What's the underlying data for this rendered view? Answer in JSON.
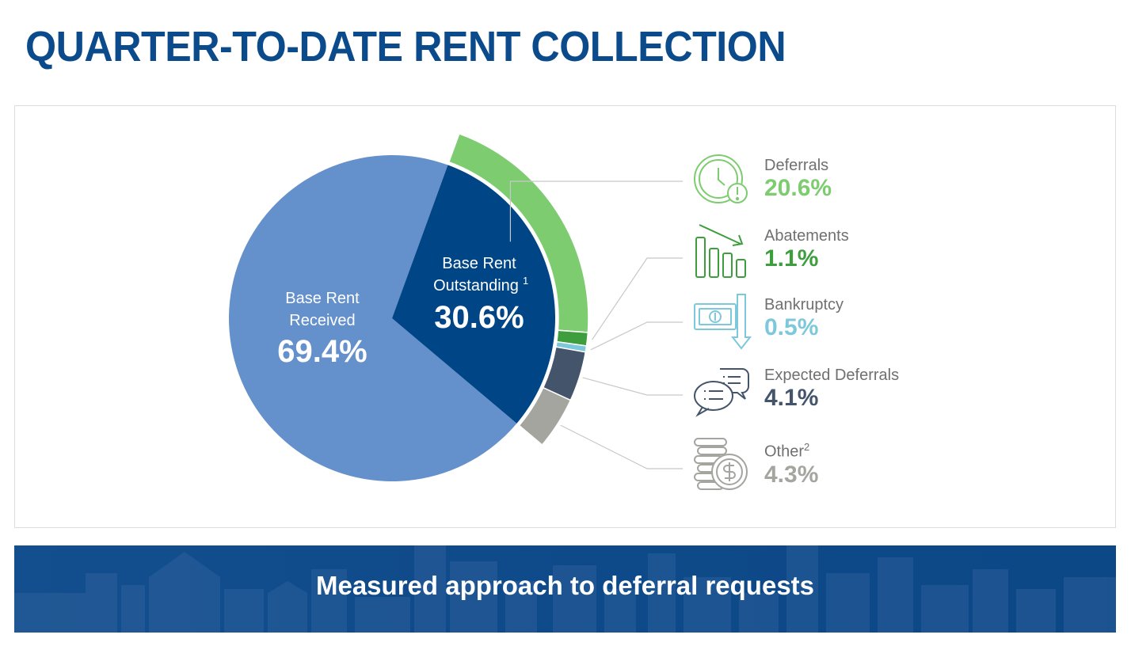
{
  "title": "QUARTER-TO-DATE RENT COLLECTION",
  "banner": {
    "text": "Measured approach to deferral requests"
  },
  "chart_data": {
    "type": "pie",
    "title": "",
    "main_slices": [
      {
        "label_line1": "Base Rent",
        "label_line2": "Received",
        "superscript": "",
        "value": 69.4,
        "value_text": "69.4%",
        "color": "#6490cb"
      },
      {
        "label_line1": "Base Rent",
        "label_line2": "Outstanding",
        "superscript": "1",
        "value": 30.6,
        "value_text": "30.6%",
        "color": "#004585"
      }
    ],
    "breakdown_of": "Base Rent Outstanding",
    "breakdown": [
      {
        "label": "Deferrals",
        "superscript": "",
        "value": 20.6,
        "value_text": "20.6%",
        "color": "#7dcc70",
        "icon": "clock-alert-icon"
      },
      {
        "label": "Abatements",
        "superscript": "",
        "value": 1.1,
        "value_text": "1.1%",
        "color": "#3e9e3e",
        "icon": "declining-bars-icon"
      },
      {
        "label": "Bankruptcy",
        "superscript": "",
        "value": 0.5,
        "value_text": "0.5%",
        "color": "#7ec8dc",
        "icon": "cash-down-icon"
      },
      {
        "label": "Expected Deferrals",
        "superscript": "",
        "value": 4.1,
        "value_text": "4.1%",
        "color": "#44546a",
        "icon": "chat-bubbles-icon"
      },
      {
        "label": "Other",
        "superscript": "2",
        "value": 4.3,
        "value_text": "4.3%",
        "color": "#a5a5a0",
        "icon": "coin-stack-icon"
      }
    ],
    "legend_placement": "right",
    "leader_line_color": "#c8c8c8"
  }
}
